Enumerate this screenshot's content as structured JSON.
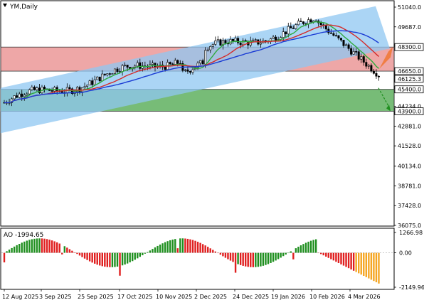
{
  "chart_data": [
    {
      "type": "candlestick",
      "symbol_label": "YM,Daily",
      "y_ticks": [
        51040.0,
        49687.0,
        48300.0,
        46650.0,
        46125.3,
        45400.0,
        44234.0,
        43900.0,
        42881.0,
        41528.0,
        40134.0,
        38781.0,
        37428.0,
        36075.0
      ],
      "highlighted_levels": [
        {
          "value": 48300.0,
          "label": "48300.0",
          "zone": "resistance"
        },
        {
          "value": 46650.0,
          "label": "46650.0",
          "zone": "resistance"
        },
        {
          "value": 46125.3,
          "label": "46125.3",
          "zone": "current_price"
        },
        {
          "value": 45400.0,
          "label": "45400.0",
          "zone": "support"
        },
        {
          "value": 43900.0,
          "label": "43900.0",
          "zone": "support"
        }
      ],
      "ylim": [
        36075.0,
        51040.0
      ],
      "x_tick_labels": [
        "12 Aug 2025",
        "3 Sep 2025",
        "25 Sep 2025",
        "17 Oct 2025",
        "10 Nov 2025",
        "2 Dec 2025",
        "24 Dec 2025",
        "19 Jan 2026",
        "10 Feb 2026",
        "4 Mar 2026"
      ],
      "last_price": 46125.3,
      "resistance_zone": [
        46650.0,
        48300.0
      ],
      "support_zone": [
        43900.0,
        45400.0
      ],
      "grid": false,
      "colors": {
        "bull_candle": "#ffffff",
        "bear_candle": "#000000",
        "channel": "#8fc7f2",
        "resistance_zone": "#e88a8a",
        "support_zone": "#5fb05f",
        "ma_fast": "#2faa3c",
        "ma_mid": "#d42a2a",
        "ma_slow": "#1a3bd4"
      }
    },
    {
      "type": "bar",
      "indicator_label": "AO -1994.65",
      "y_ticks": [
        1266.98,
        0.0,
        -2149.96
      ],
      "ylim": [
        -2149.96,
        1266.98
      ],
      "colors": {
        "up": "#1f8f1f",
        "down": "#e01f1f",
        "highlight": "#f5a623"
      }
    }
  ]
}
